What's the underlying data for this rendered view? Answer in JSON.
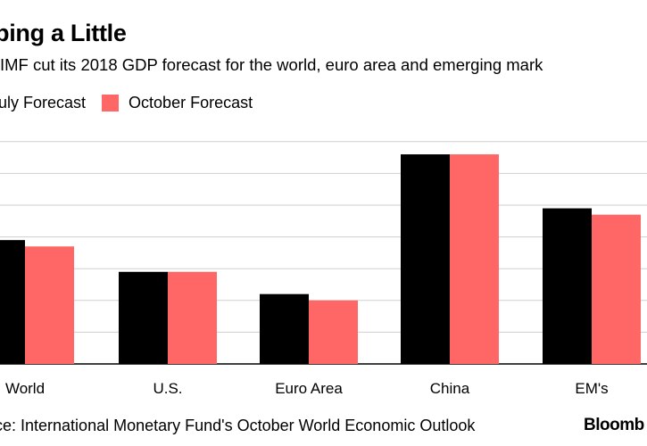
{
  "header": {
    "title": "ping a Little",
    "subtitle": "IMF cut its 2018 GDP forecast for the world, euro area and emerging mark"
  },
  "legend": {
    "items": [
      {
        "label": "uly Forecast",
        "color": "#000000"
      },
      {
        "label": "October Forecast",
        "color": "#ff6666"
      }
    ]
  },
  "footer": {
    "source": "ce: International Monetary Fund's October World Economic Outlook",
    "logo": "Bloomb"
  },
  "chart_data": {
    "type": "bar",
    "categories": [
      "World",
      "U.S.",
      "Euro Area",
      "China",
      "EM's"
    ],
    "series": [
      {
        "name": "uly Forecast",
        "color": "#000000",
        "values": [
          3.9,
          2.9,
          2.2,
          6.6,
          4.9
        ]
      },
      {
        "name": "October Forecast",
        "color": "#ff6666",
        "values": [
          3.7,
          2.9,
          2.0,
          6.6,
          4.7
        ]
      }
    ],
    "ylim": [
      0,
      7
    ],
    "grid": true
  }
}
